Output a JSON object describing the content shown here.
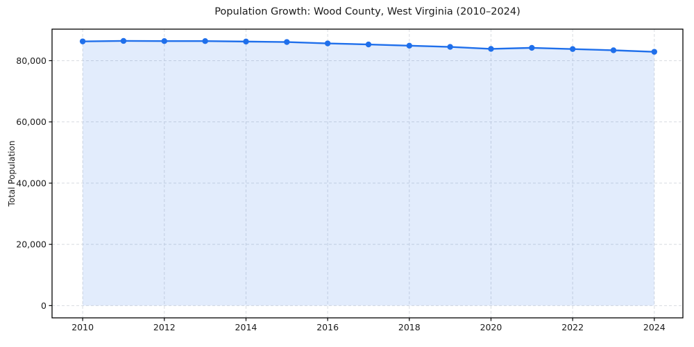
{
  "figure": {
    "title": "Population Growth: Wood County, West Virginia (2010–2024)",
    "y_axis_label": "Total Population"
  },
  "chart_data": {
    "type": "area",
    "title": "Population Growth: Wood County, West Virginia (2010–2024)",
    "xlabel": "",
    "ylabel": "Total Population",
    "x": [
      2010,
      2011,
      2012,
      2013,
      2014,
      2015,
      2016,
      2017,
      2018,
      2019,
      2020,
      2021,
      2022,
      2023,
      2024
    ],
    "series": [
      {
        "name": "Total Population",
        "values": [
          86300,
          86450,
          86400,
          86400,
          86250,
          86100,
          85650,
          85300,
          84900,
          84500,
          83850,
          84200,
          83800,
          83400,
          82900
        ]
      }
    ],
    "xticks": [
      2010,
      2012,
      2014,
      2016,
      2018,
      2020,
      2022,
      2024
    ],
    "yticks": [
      0,
      20000,
      40000,
      60000,
      80000
    ],
    "ytick_labels": [
      "0",
      "20,000",
      "40,000",
      "60,000",
      "80,000"
    ],
    "xlim": [
      2009.25,
      2024.7
    ],
    "ylim": [
      -4000,
      90300
    ],
    "grid": true,
    "grid_style": "dashed",
    "legend_position": "none",
    "marker": "circle",
    "colors": {
      "line": "#1f6feb",
      "fill": "rgba(31, 111, 235, 0.13)",
      "grid": "#d8dbe0",
      "axis": "#000000",
      "text": "#1a1a1a",
      "background": "#ffffff"
    }
  }
}
